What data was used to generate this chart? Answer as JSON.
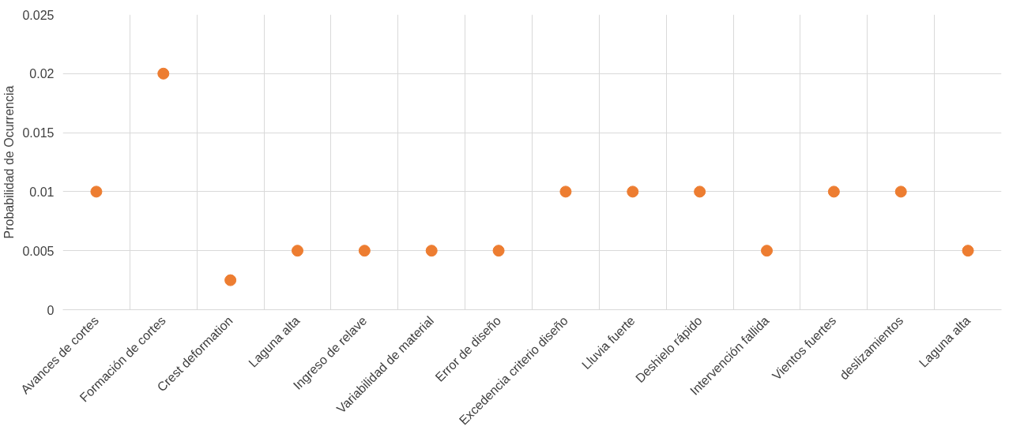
{
  "chart_data": {
    "type": "scatter",
    "ylabel": "Probabilidad de Ocurrencia",
    "categories": [
      "Avances de cortes",
      "Formación de cortes",
      "Crest deformation",
      "Laguna alta",
      "Ingreso de relave",
      "Variabilidad de material",
      "Error de diseño",
      "Excedencia criterio diseño",
      "Lluvia fuerte",
      "Deshielo rápido",
      "Intervención fallida",
      "Vientos fuertes",
      "deslizamientos",
      "Laguna alta"
    ],
    "series": [
      {
        "color": "#ed7d31",
        "values": [
          0.01,
          0.02,
          0.0025,
          0.005,
          0.005,
          0.005,
          0.005,
          0.01,
          0.01,
          0.01,
          0.005,
          0.01,
          0.01,
          0.005
        ]
      }
    ],
    "ylim": [
      0,
      0.025
    ],
    "yticks": [
      0,
      0.005,
      0.01,
      0.015,
      0.02,
      0.025
    ],
    "grid": true,
    "marker": "circle"
  }
}
